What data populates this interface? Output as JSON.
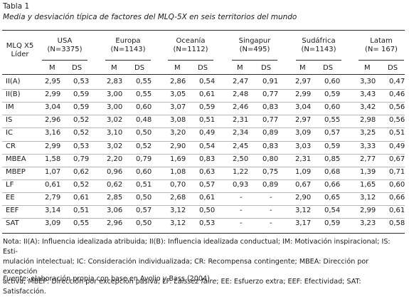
{
  "title": "Tabla 1",
  "subtitle": "Media y desviación típica de factores del MLQ-5X en seis territorios del mundo",
  "header": {
    "row_label": [
      "MLQ X5",
      "Líder"
    ],
    "groups": [
      {
        "name": "USA",
        "n": "(N=3375)"
      },
      {
        "name": "Europa",
        "n": "(N=1143)"
      },
      {
        "name": "Oceanía",
        "n": "(N=1112)"
      },
      {
        "name": "Singapur",
        "n": "(N=495)"
      },
      {
        "name": "Sudáfrica",
        "n": "(N=1143)"
      },
      {
        "name": "Latam",
        "n": "(N= 167)"
      }
    ],
    "sub": [
      "M",
      "DS"
    ]
  },
  "rows": [
    {
      "label": "II(A)",
      "values": [
        "2,95",
        "0,53",
        "2,83",
        "0,55",
        "2,86",
        "0,54",
        "2,47",
        "0,91",
        "2,97",
        "0,60",
        "3,30",
        "0,47"
      ]
    },
    {
      "label": "II(B)",
      "values": [
        "2,99",
        "0,59",
        "3,00",
        "0,55",
        "3,05",
        "0,61",
        "2,48",
        "0,77",
        "2,99",
        "0,59",
        "3,43",
        "0,46"
      ]
    },
    {
      "label": "IM",
      "values": [
        "3,04",
        "0,59",
        "3,00",
        "0,60",
        "3,07",
        "0,59",
        "2,46",
        "0,83",
        "3,04",
        "0,60",
        "3,42",
        "0,56"
      ]
    },
    {
      "label": "IS",
      "values": [
        "2,96",
        "0,52",
        "3,02",
        "0,48",
        "3,08",
        "0,51",
        "2,31",
        "0,77",
        "2,97",
        "0,55",
        "2,98",
        "0,56"
      ]
    },
    {
      "label": "IC",
      "values": [
        "3,16",
        "0,52",
        "3,10",
        "0,50",
        "3,20",
        "0,49",
        "2,34",
        "0,89",
        "3,09",
        "0,57",
        "3,25",
        "0,51"
      ]
    },
    {
      "label": "CR",
      "values": [
        "2,99",
        "0,53",
        "3,02",
        "0,52",
        "2,90",
        "0,54",
        "2,45",
        "0,83",
        "3,03",
        "0,59",
        "3,33",
        "0,49"
      ]
    },
    {
      "label": "MBEA",
      "values": [
        "1,58",
        "0,79",
        "2,20",
        "0,79",
        "1,69",
        "0,83",
        "2,50",
        "0,80",
        "2,31",
        "0,85",
        "2,77",
        "0,67"
      ]
    },
    {
      "label": "MBEP",
      "values": [
        "1,07",
        "0,62",
        "0,96",
        "0,60",
        "1,08",
        "0,63",
        "1,22",
        "0,75",
        "1,09",
        "0,68",
        "1,39",
        "0,71"
      ]
    },
    {
      "label": "LF",
      "values": [
        "0,61",
        "0,52",
        "0,62",
        "0,51",
        "0,70",
        "0,57",
        "0,93",
        "0,89",
        "0,67",
        "0,66",
        "1,65",
        "0,60"
      ]
    },
    {
      "label": "EE",
      "values": [
        "2,79",
        "0,61",
        "2,85",
        "0,50",
        "2,68",
        "0,61",
        "-",
        "-",
        "2,90",
        "0,65",
        "3,12",
        "0,66"
      ]
    },
    {
      "label": "EEF",
      "values": [
        "3,14",
        "0,51",
        "3,06",
        "0,57",
        "3,12",
        "0,50",
        "-",
        "-",
        "3,12",
        "0,54",
        "2,99",
        "0,61"
      ]
    },
    {
      "label": "SAT",
      "values": [
        "3,09",
        "0,55",
        "2,96",
        "0,50",
        "3,12",
        "0,53",
        "-",
        "-",
        "3,17",
        "0,59",
        "3,23",
        "0,58"
      ]
    }
  ],
  "note": {
    "lines": [
      "Nota: II(A): Influencia idealizada atribuida; II(B): Influencia idealizada conductual; IM: Motivación inspiracional; IS: Esti-",
      "mulación intelectual; IC: Consideración individualizada; CR: Recompensa contingente; MBEA: Dirección por excepción",
      "activa; MBEP: Dirección por excepción pasiva; LF: "
    ],
    "laissez": "Laissez faire",
    "line3_tail": "; EE: Esfuerzo extra; EEF: Efectividad; SAT: Satisfacción."
  },
  "source": {
    "label": "Fuente",
    "text": ": elaboración propia con base en Avolio y Bass (2004)."
  }
}
